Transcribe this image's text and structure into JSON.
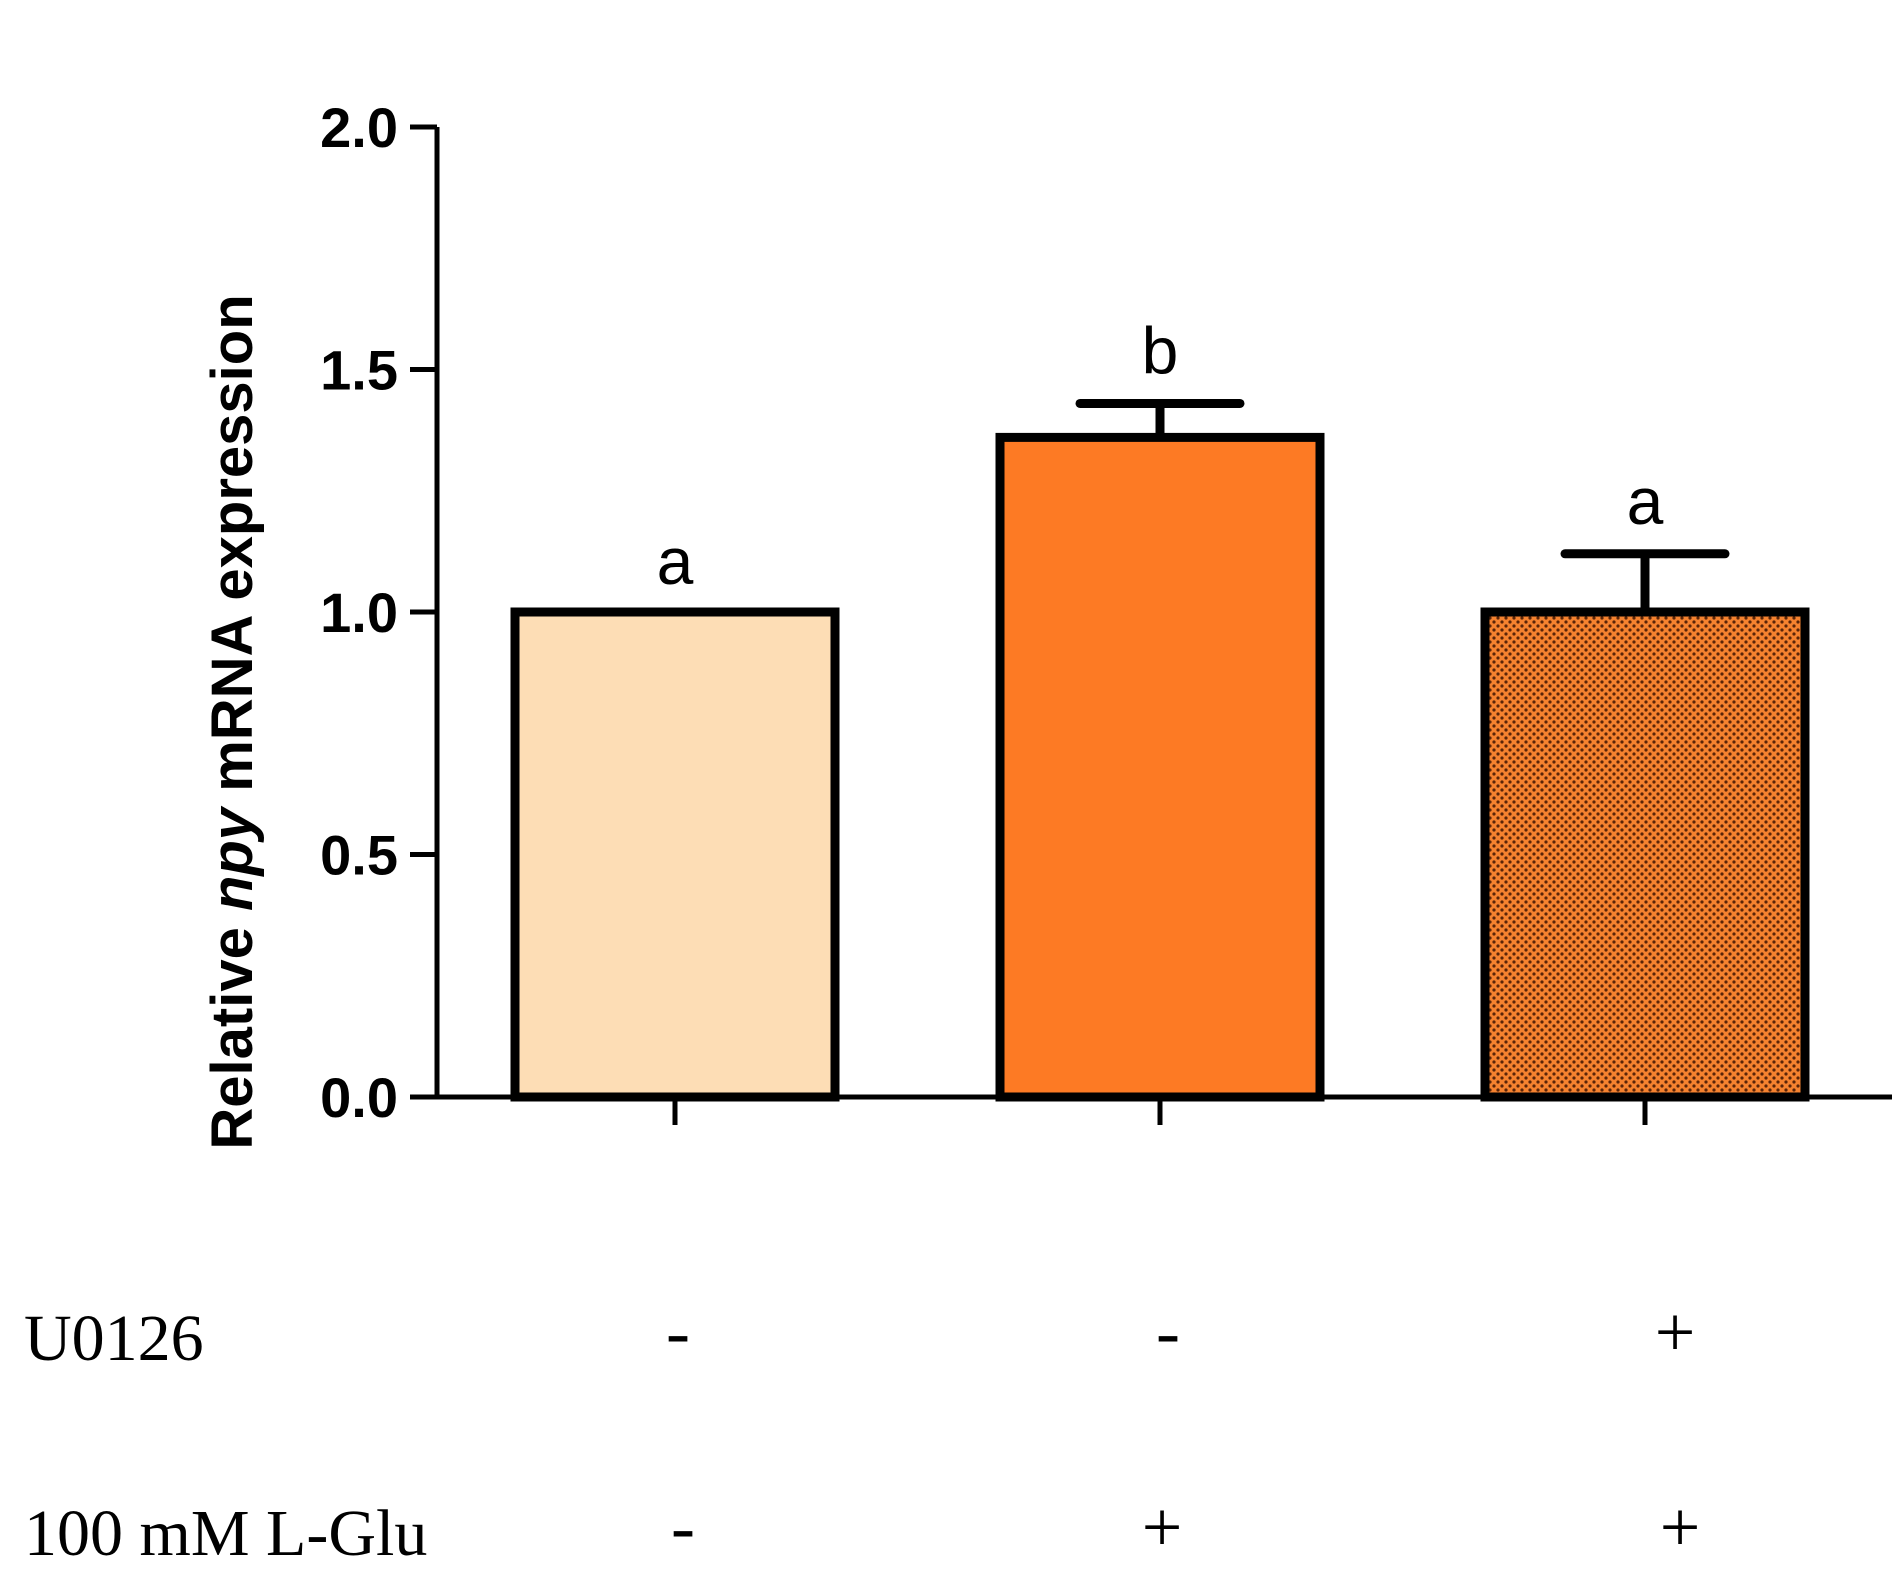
{
  "chart_data": {
    "type": "bar",
    "title": "",
    "xlabel": "",
    "ylabel": {
      "prefix": "Relative ",
      "gene": "npy",
      "suffix": " mRNA expression"
    },
    "ylim": [
      0,
      2.0
    ],
    "yticks": [
      "0.0",
      "0.5",
      "1.0",
      "1.5",
      "2.0"
    ],
    "grid": false,
    "bars": [
      {
        "value": 1.0,
        "error": 0.0,
        "letter": "a",
        "color": "#fdddb5",
        "pattern": "solid"
      },
      {
        "value": 1.36,
        "error": 0.07,
        "letter": "b",
        "color": "#fd7a24",
        "pattern": "solid"
      },
      {
        "value": 1.0,
        "error": 0.12,
        "letter": "a",
        "color": "#f37a2a",
        "pattern": "dotted"
      }
    ],
    "treatments": [
      {
        "label": "U0126",
        "values": [
          "-",
          "-",
          "+"
        ]
      },
      {
        "label": "100 mM L-Glu",
        "values": [
          "-",
          "+",
          "+"
        ]
      }
    ]
  }
}
